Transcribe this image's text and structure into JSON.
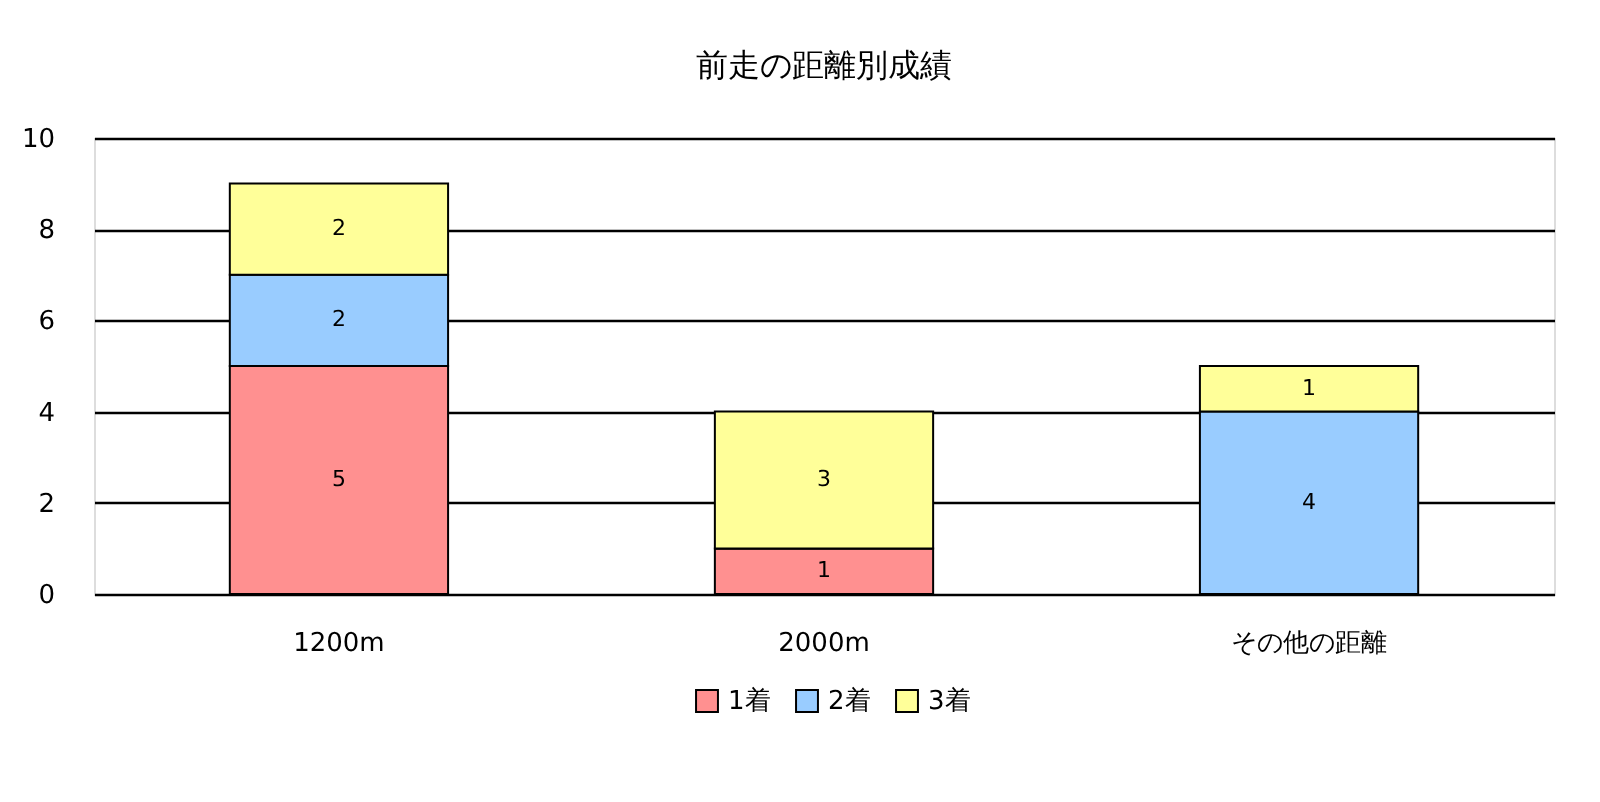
{
  "chart_data": {
    "type": "bar",
    "title": "前走の距離別成績",
    "categories": [
      "1200m",
      "2000m",
      "その他の距離"
    ],
    "series": [
      {
        "name": "1着",
        "color": "#ff9090",
        "values": [
          5,
          1,
          0
        ],
        "value_labels": [
          "5",
          "1",
          null
        ]
      },
      {
        "name": "2着",
        "color": "#99ccff",
        "values": [
          2,
          0,
          4
        ],
        "value_labels": [
          "2",
          null,
          "4"
        ]
      },
      {
        "name": "3着",
        "color": "#ffff99",
        "values": [
          2,
          3,
          1
        ],
        "value_labels": [
          "2",
          "3",
          "1"
        ]
      }
    ],
    "stacked": true,
    "ylim": [
      0,
      10
    ],
    "yticks": [
      0,
      2,
      4,
      6,
      8,
      10
    ],
    "grid": "y",
    "legend": "bottom"
  }
}
